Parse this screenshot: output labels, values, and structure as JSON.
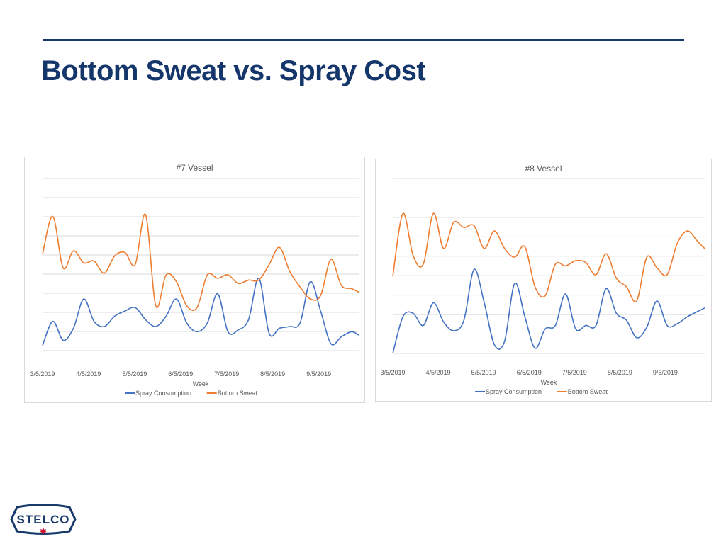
{
  "slide": {
    "title": "Bottom Sweat vs. Spray Cost"
  },
  "colors": {
    "title": "#15366b",
    "rule": "#173a6b",
    "spray": "#4472c4",
    "sweat": "#ed7d31",
    "grid": "#d9d9d9",
    "logo_red": "#c8102e"
  },
  "logo": {
    "text": "STELCO",
    "icon": "maple-leaf-icon"
  },
  "chart_data": [
    {
      "type": "line",
      "title": "#7 Vessel",
      "xlabel": "Week",
      "ylabel": "",
      "ylim": [
        0,
        100
      ],
      "grid": true,
      "legend": "bottom",
      "x_ticks": [
        "3/5/2019",
        "4/5/2019",
        "5/5/2019",
        "6/5/2019",
        "7/5/2019",
        "8/5/2019",
        "9/5/2019"
      ],
      "x_start": 0,
      "x_end": 30.7,
      "series": [
        {
          "name": "Spray Consumption",
          "x": [
            0,
            1,
            2,
            3,
            4,
            5,
            6,
            7,
            8,
            9,
            10,
            11,
            12,
            13,
            14,
            15,
            16,
            17,
            18,
            19,
            20,
            21,
            22,
            23,
            24,
            25,
            26,
            27,
            28,
            29,
            30,
            30.7
          ],
          "values": [
            3,
            17,
            6,
            13,
            30,
            17,
            14,
            20,
            23,
            25,
            18,
            14,
            20,
            30,
            16,
            11,
            16,
            33,
            11,
            12,
            18,
            42,
            10,
            13,
            14,
            16,
            40,
            23,
            4,
            8,
            11,
            9
          ]
        },
        {
          "name": "Bottom Sweat",
          "x": [
            0,
            1,
            2,
            3,
            4,
            5,
            6,
            7,
            8,
            9,
            10,
            11,
            12,
            13,
            14,
            15,
            16,
            17,
            18,
            19,
            20,
            21,
            22,
            23,
            24,
            25,
            26,
            27,
            28,
            29,
            30,
            30.7
          ],
          "values": [
            56,
            78,
            48,
            58,
            51,
            52,
            45,
            55,
            57,
            50,
            79,
            26,
            44,
            40,
            26,
            25,
            44,
            42,
            44,
            39,
            41,
            41,
            50,
            60,
            46,
            37,
            30,
            32,
            53,
            38,
            36,
            34
          ]
        }
      ]
    },
    {
      "type": "line",
      "title": "#8 Vessel",
      "xlabel": "Week",
      "ylabel": "",
      "ylim": [
        0,
        100
      ],
      "grid": true,
      "legend": "bottom",
      "x_ticks": [
        "3/5/2019",
        "4/5/2019",
        "5/5/2019",
        "6/5/2019",
        "7/5/2019",
        "8/5/2019",
        "9/5/2019"
      ],
      "x_start": 0,
      "x_end": 30.7,
      "series": [
        {
          "name": "Spray Consumption",
          "x": [
            0,
            1,
            2,
            3,
            4,
            5,
            6,
            7,
            8,
            9,
            10,
            11,
            12,
            13,
            14,
            15,
            16,
            17,
            18,
            19,
            20,
            21,
            22,
            23,
            24,
            25,
            26,
            27,
            28,
            29,
            30,
            30.7
          ],
          "values": [
            0,
            21,
            23,
            16,
            29,
            18,
            13,
            19,
            48,
            29,
            5,
            7,
            40,
            21,
            3,
            14,
            16,
            34,
            14,
            16,
            16,
            37,
            23,
            19,
            9,
            15,
            30,
            16,
            17,
            21,
            24,
            26
          ]
        },
        {
          "name": "Bottom Sweat",
          "x": [
            0,
            1,
            2,
            3,
            4,
            5,
            6,
            7,
            8,
            9,
            10,
            11,
            12,
            13,
            14,
            15,
            16,
            17,
            18,
            19,
            20,
            21,
            22,
            23,
            24,
            25,
            26,
            27,
            28,
            29,
            30,
            30.7
          ],
          "values": [
            44,
            80,
            56,
            51,
            80,
            60,
            75,
            72,
            73,
            60,
            70,
            60,
            55,
            61,
            38,
            33,
            51,
            50,
            53,
            52,
            45,
            57,
            43,
            38,
            30,
            55,
            49,
            45,
            63,
            70,
            64,
            60
          ]
        }
      ]
    }
  ]
}
